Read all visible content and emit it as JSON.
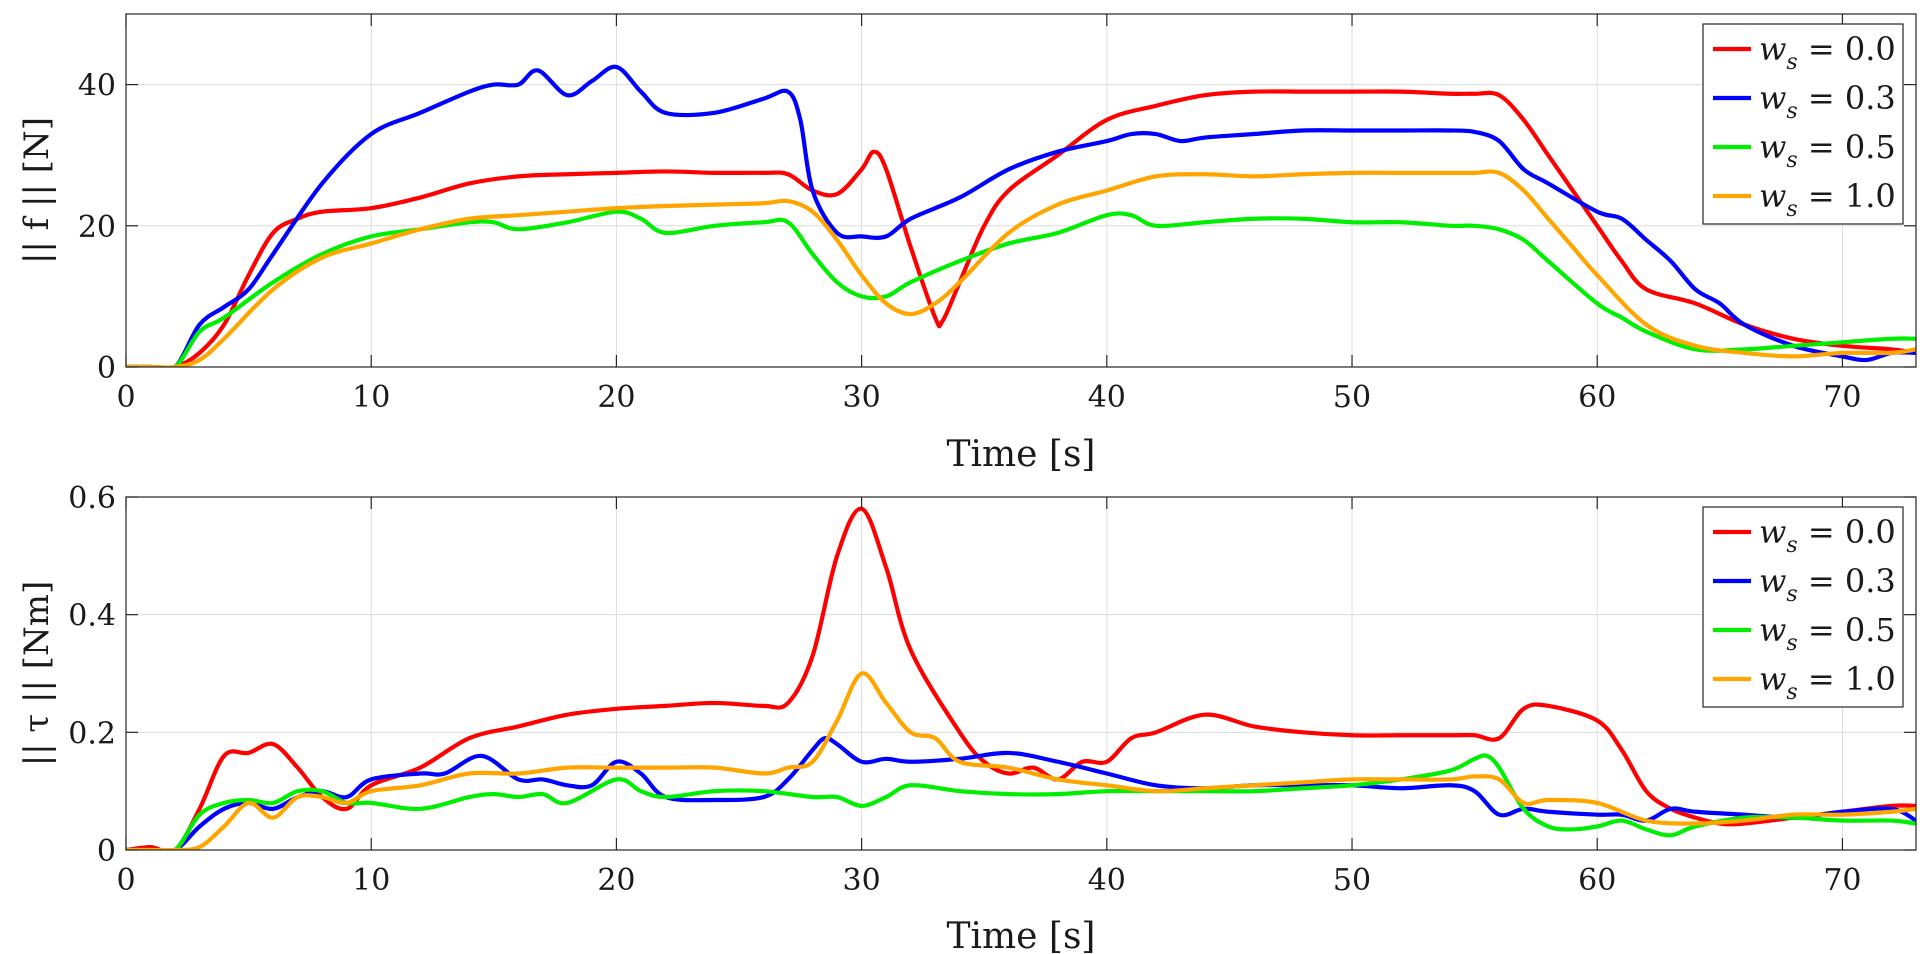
{
  "chart_data": [
    {
      "type": "line",
      "xlabel": "Time [s]",
      "ylabel": "|| f || [N]",
      "xlim": [
        0,
        73
      ],
      "ylim": [
        0,
        50
      ],
      "xticks": [
        0,
        10,
        20,
        30,
        40,
        50,
        60,
        70
      ],
      "yticks": [
        0,
        20,
        40
      ],
      "grid": true,
      "legend_position": "top-right",
      "legend": [
        "w_s = 0.0",
        "w_s = 0.3",
        "w_s = 0.5",
        "w_s = 1.0"
      ],
      "series": [
        {
          "name": "w_s = 0.0",
          "color": "#ff0000",
          "x": [
            0,
            1,
            2,
            3,
            4,
            5,
            6,
            7,
            8,
            10,
            12,
            14,
            16,
            18,
            20,
            22,
            24,
            26,
            27,
            28,
            29,
            30,
            30.5,
            31,
            32,
            33,
            33.3,
            34,
            35,
            36,
            38,
            40,
            42,
            44,
            46,
            48,
            50,
            52,
            54,
            55,
            56,
            57,
            58,
            59,
            60,
            61,
            62,
            64,
            66,
            68,
            70,
            72,
            73
          ],
          "y": [
            0,
            0,
            0,
            2,
            6,
            13,
            19,
            21,
            22,
            22.5,
            24,
            26,
            27,
            27.3,
            27.5,
            27.7,
            27.5,
            27.5,
            27.3,
            25,
            24.5,
            28,
            30.5,
            28,
            17,
            7,
            6.5,
            12,
            20,
            25,
            30,
            35,
            37,
            38.5,
            39,
            39,
            39,
            39,
            38.7,
            38.7,
            38.5,
            35,
            30,
            25,
            20,
            15,
            11,
            9,
            6,
            4,
            3,
            2.5,
            2
          ]
        },
        {
          "name": "w_s = 0.3",
          "color": "#0000ff",
          "x": [
            0,
            1,
            2,
            3,
            4,
            5,
            6,
            8,
            10,
            12,
            14,
            15,
            16,
            16.8,
            18,
            19,
            20,
            21,
            22,
            24,
            26,
            27,
            27.5,
            28,
            29,
            30,
            31,
            32,
            34,
            36,
            38,
            40,
            41,
            42,
            43,
            44,
            46,
            48,
            50,
            52,
            54,
            55,
            56,
            57,
            58,
            60,
            61,
            62,
            63,
            64,
            65,
            66,
            68,
            70,
            71,
            72,
            73
          ],
          "y": [
            0,
            0,
            0,
            6,
            8.5,
            11,
            16,
            26,
            33,
            36,
            39,
            40,
            40,
            42,
            38.5,
            40.5,
            42.5,
            39,
            36,
            36,
            38,
            39,
            35,
            25,
            19,
            18.5,
            18.5,
            21,
            24,
            28,
            30.5,
            32,
            33,
            33,
            32,
            32.5,
            33,
            33.5,
            33.5,
            33.5,
            33.5,
            33.3,
            32,
            28,
            26,
            22,
            21,
            18,
            15,
            11,
            9,
            6,
            3,
            1.5,
            1,
            2,
            2
          ]
        },
        {
          "name": "w_s = 0.5",
          "color": "#00ee00",
          "x": [
            0,
            1,
            2,
            3,
            4,
            6,
            8,
            10,
            12,
            14,
            15,
            16,
            18,
            20,
            21,
            22,
            24,
            26,
            27,
            28,
            29,
            30,
            31,
            32,
            34,
            36,
            38,
            40,
            41,
            42,
            44,
            46,
            48,
            50,
            52,
            54,
            55,
            56,
            57,
            58,
            60,
            61,
            62,
            64,
            66,
            68,
            70,
            72,
            73
          ],
          "y": [
            0,
            0,
            0,
            5,
            7,
            12,
            16,
            18.5,
            19.5,
            20.5,
            20.5,
            19.5,
            20.5,
            22,
            21,
            19,
            20,
            20.5,
            20.5,
            16,
            12,
            10,
            10,
            12,
            15,
            17.5,
            19,
            21.5,
            21.5,
            20,
            20.5,
            21,
            21,
            20.5,
            20.5,
            20,
            20,
            19.5,
            18,
            15,
            9,
            7,
            5,
            2.5,
            2.5,
            3,
            3.5,
            4,
            4
          ]
        },
        {
          "name": "w_s = 1.0",
          "color": "#ffa500",
          "x": [
            0,
            1,
            2,
            3,
            4,
            6,
            8,
            10,
            12,
            14,
            16,
            18,
            20,
            22,
            24,
            26,
            27,
            28,
            29,
            30,
            31,
            32,
            33,
            34,
            36,
            38,
            40,
            42,
            44,
            46,
            48,
            50,
            52,
            54,
            55,
            56,
            57,
            58,
            59,
            60,
            62,
            64,
            66,
            68,
            70,
            72,
            73
          ],
          "y": [
            0,
            0,
            0,
            1,
            4,
            11,
            15.5,
            17.5,
            19.5,
            21,
            21.5,
            22,
            22.5,
            22.8,
            23,
            23.2,
            23.5,
            22,
            18,
            13,
            9,
            7.5,
            9,
            12,
            19,
            23,
            25,
            27,
            27.3,
            27,
            27.3,
            27.5,
            27.5,
            27.5,
            27.5,
            27.5,
            25,
            21,
            17,
            13,
            6,
            3,
            2,
            1.5,
            2,
            2,
            2.5
          ]
        }
      ]
    },
    {
      "type": "line",
      "xlabel": "Time [s]",
      "ylabel": "|| τ || [Nm]",
      "xlim": [
        0,
        73
      ],
      "ylim": [
        0,
        0.6
      ],
      "xticks": [
        0,
        10,
        20,
        30,
        40,
        50,
        60,
        70
      ],
      "yticks": [
        0,
        0.2,
        0.4,
        0.6
      ],
      "ytick_labels": [
        "0",
        "0.2",
        "0.4",
        "0.6"
      ],
      "grid": true,
      "legend_position": "top-right",
      "legend": [
        "w_s = 0.0",
        "w_s = 0.3",
        "w_s = 0.5",
        "w_s = 1.0"
      ],
      "series": [
        {
          "name": "w_s = 0.0",
          "color": "#ff0000",
          "x": [
            0,
            1,
            2,
            3,
            4,
            5,
            6,
            7,
            8,
            9,
            10,
            12,
            14,
            16,
            18,
            20,
            22,
            24,
            26,
            27,
            28,
            29,
            30,
            31,
            32,
            34,
            35,
            36,
            37,
            38,
            39,
            40,
            41,
            42,
            44,
            46,
            48,
            50,
            52,
            54,
            55,
            56,
            57,
            58,
            60,
            61,
            62,
            63,
            64,
            65,
            66,
            68,
            70,
            72,
            73
          ],
          "y": [
            0,
            0.005,
            0,
            0.07,
            0.16,
            0.165,
            0.18,
            0.14,
            0.09,
            0.07,
            0.11,
            0.14,
            0.19,
            0.21,
            0.23,
            0.24,
            0.245,
            0.25,
            0.245,
            0.25,
            0.33,
            0.5,
            0.58,
            0.48,
            0.34,
            0.2,
            0.15,
            0.13,
            0.14,
            0.12,
            0.15,
            0.15,
            0.19,
            0.2,
            0.23,
            0.21,
            0.2,
            0.195,
            0.195,
            0.195,
            0.195,
            0.19,
            0.24,
            0.245,
            0.22,
            0.17,
            0.1,
            0.07,
            0.055,
            0.045,
            0.045,
            0.055,
            0.065,
            0.075,
            0.075
          ]
        },
        {
          "name": "w_s = 0.3",
          "color": "#0000ff",
          "x": [
            0,
            1,
            2,
            3,
            4,
            5,
            6,
            7,
            8,
            9,
            10,
            12,
            13,
            14.5,
            16,
            17,
            18,
            19,
            20,
            21,
            22,
            24,
            26,
            27,
            28,
            28.5,
            29,
            30,
            31,
            32,
            34,
            36,
            38,
            40,
            42,
            44,
            46,
            48,
            50,
            52,
            54,
            55,
            56,
            57,
            58,
            60,
            61,
            62,
            63,
            64,
            66,
            68,
            70,
            72,
            73
          ],
          "y": [
            0,
            0,
            0,
            0.04,
            0.07,
            0.08,
            0.07,
            0.09,
            0.1,
            0.09,
            0.12,
            0.13,
            0.13,
            0.16,
            0.12,
            0.12,
            0.11,
            0.11,
            0.15,
            0.13,
            0.09,
            0.085,
            0.09,
            0.12,
            0.17,
            0.19,
            0.18,
            0.15,
            0.155,
            0.15,
            0.155,
            0.165,
            0.15,
            0.13,
            0.11,
            0.105,
            0.11,
            0.11,
            0.11,
            0.105,
            0.11,
            0.1,
            0.06,
            0.07,
            0.065,
            0.06,
            0.06,
            0.05,
            0.07,
            0.065,
            0.06,
            0.055,
            0.065,
            0.07,
            0.05
          ]
        },
        {
          "name": "w_s = 0.5",
          "color": "#00ee00",
          "x": [
            0,
            1,
            2,
            3,
            4,
            5,
            6,
            7,
            8,
            9,
            10,
            12,
            14,
            15,
            16,
            17,
            18,
            20,
            21,
            22,
            24,
            26,
            28,
            29,
            30,
            31,
            32,
            34,
            36,
            38,
            40,
            42,
            44,
            46,
            48,
            50,
            52,
            54,
            55,
            55.5,
            56,
            57,
            58,
            59,
            60,
            61,
            62,
            63,
            64,
            66,
            68,
            70,
            72,
            73
          ],
          "y": [
            0,
            0,
            0,
            0.06,
            0.08,
            0.085,
            0.08,
            0.1,
            0.1,
            0.08,
            0.08,
            0.07,
            0.09,
            0.095,
            0.09,
            0.095,
            0.08,
            0.12,
            0.1,
            0.09,
            0.1,
            0.1,
            0.09,
            0.09,
            0.075,
            0.09,
            0.11,
            0.1,
            0.095,
            0.095,
            0.1,
            0.1,
            0.1,
            0.1,
            0.105,
            0.11,
            0.12,
            0.135,
            0.155,
            0.16,
            0.14,
            0.07,
            0.04,
            0.035,
            0.04,
            0.05,
            0.035,
            0.025,
            0.04,
            0.055,
            0.055,
            0.05,
            0.05,
            0.045
          ]
        },
        {
          "name": "w_s = 1.0",
          "color": "#ffa500",
          "x": [
            0,
            1,
            2,
            3,
            4,
            5,
            6,
            7,
            8,
            9,
            10,
            12,
            14,
            16,
            18,
            20,
            22,
            24,
            26,
            27,
            28,
            29,
            30,
            31,
            32,
            33,
            34,
            36,
            38,
            40,
            42,
            44,
            46,
            48,
            50,
            52,
            54,
            55,
            56,
            57,
            58,
            60,
            62,
            64,
            66,
            68,
            70,
            72,
            73
          ],
          "y": [
            0,
            0,
            0,
            0.005,
            0.04,
            0.08,
            0.055,
            0.09,
            0.09,
            0.08,
            0.1,
            0.11,
            0.13,
            0.13,
            0.14,
            0.14,
            0.14,
            0.14,
            0.13,
            0.14,
            0.15,
            0.22,
            0.3,
            0.25,
            0.2,
            0.19,
            0.15,
            0.14,
            0.12,
            0.11,
            0.1,
            0.105,
            0.11,
            0.115,
            0.12,
            0.12,
            0.12,
            0.125,
            0.12,
            0.08,
            0.085,
            0.08,
            0.05,
            0.045,
            0.05,
            0.06,
            0.06,
            0.065,
            0.07
          ]
        }
      ]
    }
  ]
}
